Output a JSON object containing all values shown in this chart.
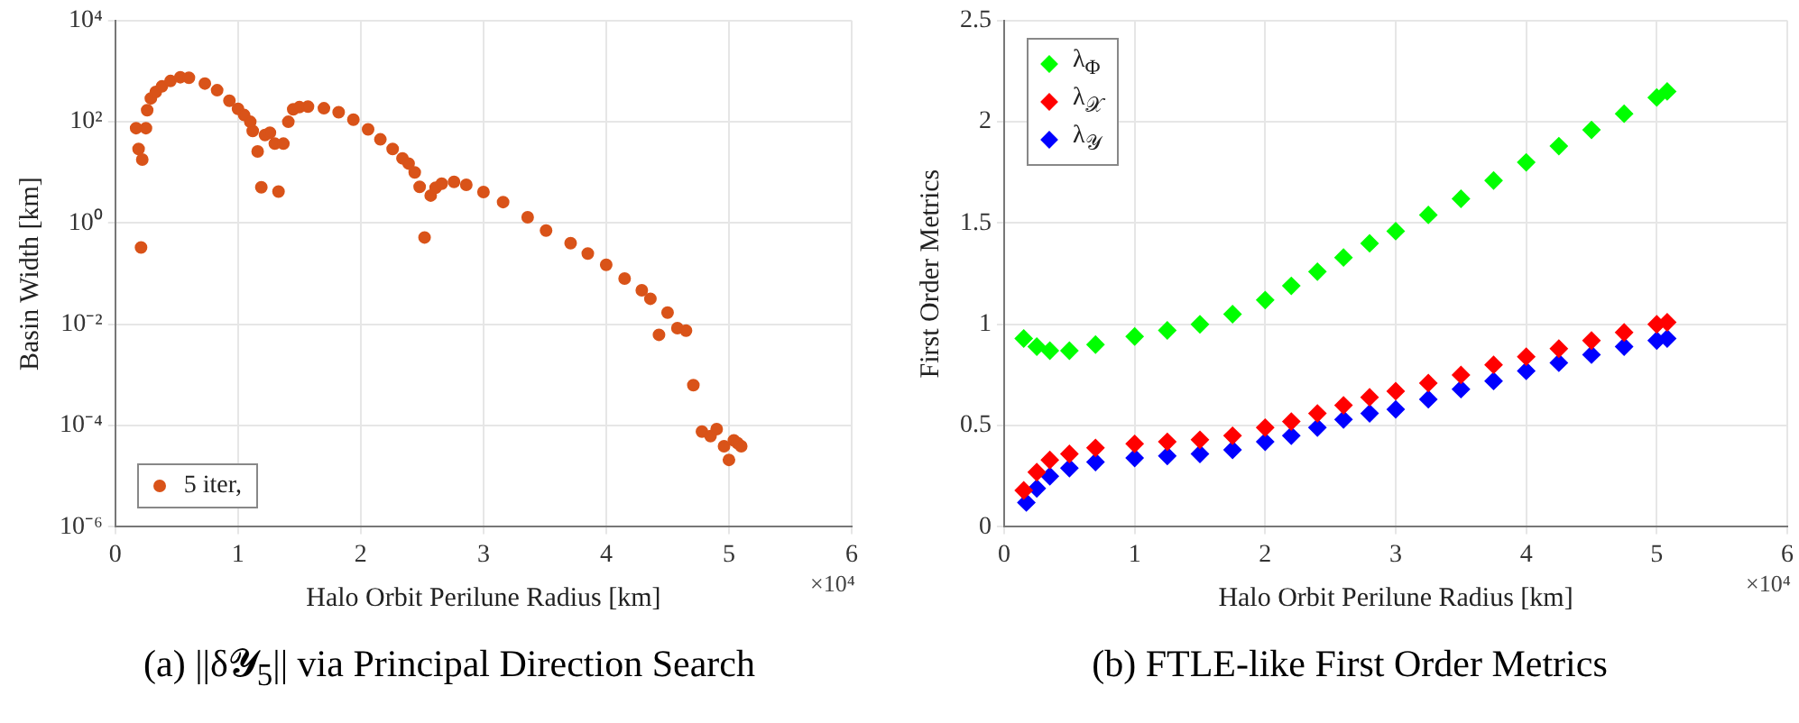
{
  "chart_data": [
    {
      "type": "scatter",
      "title": "(a) ||δ𝓨$_{5}$|| via Principal Direction Search",
      "xlabel": "Halo Orbit Perilune Radius [km]",
      "ylabel": "Basin Width [km]",
      "annotations": [
        "×10⁴"
      ],
      "log": "y",
      "grid": true,
      "legend": "bottom left",
      "marker": "circle",
      "xlim": [
        0,
        6
      ],
      "xticks": [
        0,
        1,
        2,
        3,
        4,
        5,
        6
      ],
      "ylim": [
        1e-06,
        10000
      ],
      "yticks": [
        {
          "value": 1e-06,
          "label": "10⁻⁶"
        },
        {
          "value": 0.0001,
          "label": "10⁻⁴"
        },
        {
          "value": 0.01,
          "label": "10⁻²"
        },
        {
          "value": 1,
          "label": "10⁰"
        },
        {
          "value": 100,
          "label": "10²"
        },
        {
          "value": 10000,
          "label": "10⁴"
        }
      ],
      "series": [
        {
          "name": "5 iter,",
          "color": "#d95319",
          "x": [
            0.17,
            0.19,
            0.21,
            0.22,
            0.25,
            0.26,
            0.29,
            0.33,
            0.38,
            0.45,
            0.53,
            0.6,
            0.73,
            0.83,
            0.93,
            1.0,
            1.05,
            1.1,
            1.12,
            1.16,
            1.19,
            1.22,
            1.26,
            1.3,
            1.33,
            1.37,
            1.41,
            1.45,
            1.5,
            1.57,
            1.7,
            1.82,
            1.94,
            2.06,
            2.16,
            2.26,
            2.34,
            2.39,
            2.44,
            2.48,
            2.52,
            2.57,
            2.61,
            2.66,
            2.76,
            2.86,
            3.0,
            3.16,
            3.36,
            3.51,
            3.71,
            3.85,
            4.0,
            4.15,
            4.29,
            4.36,
            4.43,
            4.5,
            4.58,
            4.65,
            4.71,
            4.78,
            4.85,
            4.9,
            4.96,
            5.0,
            5.04,
            5.07,
            5.1
          ],
          "values": [
            75,
            29,
            0.33,
            18,
            75,
            170,
            290,
            390,
            500,
            640,
            760,
            740,
            570,
            420,
            260,
            180,
            136,
            100,
            66,
            26,
            5.1,
            55,
            61,
            37,
            4.2,
            37,
            100,
            177,
            195,
            200,
            185,
            155,
            110,
            71,
            45,
            29,
            19,
            15,
            10,
            5.2,
            0.52,
            3.5,
            5,
            6,
            6.5,
            5.7,
            4.1,
            2.6,
            1.3,
            0.71,
            0.4,
            0.25,
            0.15,
            0.08,
            0.047,
            0.032,
            0.0062,
            0.017,
            0.0084,
            0.0075,
            0.00063,
            7.6e-05,
            6.2e-05,
            8.5e-05,
            3.9e-05,
            2.1e-05,
            5.1e-05,
            4.5e-05,
            3.9e-05
          ]
        }
      ]
    },
    {
      "type": "scatter",
      "title": "(b) FTLE-like First Order Metrics",
      "xlabel": "Halo Orbit Perilune Radius [km]",
      "ylabel": "First Order Metrics",
      "annotations": [
        "×10⁴"
      ],
      "grid": true,
      "legend": "top left",
      "marker": "diamond",
      "xlim": [
        0,
        6
      ],
      "xticks": [
        0,
        1,
        2,
        3,
        4,
        5,
        6
      ],
      "ylim": [
        0,
        2.5
      ],
      "yticks": [
        0,
        0.5,
        1,
        1.5,
        2,
        2.5
      ],
      "series": [
        {
          "name": "λ$_{Φ}$",
          "color": "#00ff00",
          "x": [
            0.15,
            0.25,
            0.35,
            0.5,
            0.7,
            1.0,
            1.25,
            1.5,
            1.75,
            2.0,
            2.2,
            2.4,
            2.6,
            2.8,
            3.0,
            3.25,
            3.5,
            3.75,
            4.0,
            4.25,
            4.5,
            4.75,
            5.0,
            5.08
          ],
          "values": [
            0.93,
            0.89,
            0.87,
            0.87,
            0.9,
            0.94,
            0.97,
            1.0,
            1.05,
            1.12,
            1.19,
            1.26,
            1.33,
            1.4,
            1.46,
            1.54,
            1.62,
            1.71,
            1.8,
            1.88,
            1.96,
            2.04,
            2.12,
            2.15
          ]
        },
        {
          "name": "λ$_{𝒳}$",
          "color": "#ff0000",
          "x": [
            0.15,
            0.25,
            0.35,
            0.5,
            0.7,
            1.0,
            1.25,
            1.5,
            1.75,
            2.0,
            2.2,
            2.4,
            2.6,
            2.8,
            3.0,
            3.25,
            3.5,
            3.75,
            4.0,
            4.25,
            4.5,
            4.75,
            5.0,
            5.08
          ],
          "values": [
            0.18,
            0.27,
            0.33,
            0.36,
            0.39,
            0.41,
            0.42,
            0.43,
            0.45,
            0.49,
            0.52,
            0.56,
            0.6,
            0.64,
            0.67,
            0.71,
            0.75,
            0.8,
            0.84,
            0.88,
            0.92,
            0.96,
            1.0,
            1.01
          ]
        },
        {
          "name": "λ$_{𝒴}$",
          "color": "#0000ff",
          "x": [
            0.17,
            0.25,
            0.35,
            0.5,
            0.7,
            1.0,
            1.25,
            1.5,
            1.75,
            2.0,
            2.2,
            2.4,
            2.6,
            2.8,
            3.0,
            3.25,
            3.5,
            3.75,
            4.0,
            4.25,
            4.5,
            4.75,
            5.0,
            5.08
          ],
          "values": [
            0.12,
            0.19,
            0.25,
            0.29,
            0.32,
            0.34,
            0.35,
            0.36,
            0.38,
            0.42,
            0.45,
            0.49,
            0.53,
            0.56,
            0.58,
            0.63,
            0.68,
            0.72,
            0.77,
            0.81,
            0.85,
            0.89,
            0.92,
            0.93
          ]
        }
      ]
    }
  ]
}
